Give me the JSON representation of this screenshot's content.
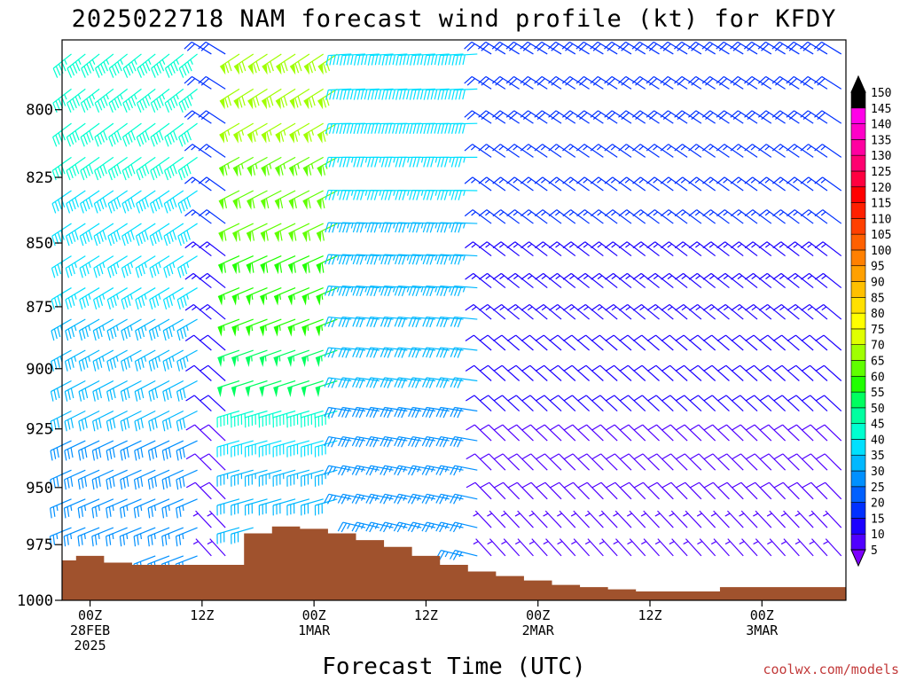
{
  "chart_data": {
    "type": "wind-barb",
    "title": "2025022718 NAM forecast wind profile (kt) for KFDY",
    "xlabel": "Forecast Time (UTC)",
    "ylabel": "",
    "credit": "coolwx.com/models",
    "y_axis": {
      "scale": "pressure (hPa), inverted",
      "range": [
        1000,
        775
      ],
      "ticks": [
        800,
        825,
        850,
        875,
        900,
        925,
        950,
        975,
        1000
      ]
    },
    "x_axis": {
      "range_hours": [
        -3,
        81
      ],
      "ticks": [
        {
          "hour": 0,
          "lines": [
            "00Z",
            "28FEB",
            "2025"
          ]
        },
        {
          "hour": 12,
          "lines": [
            "12Z"
          ]
        },
        {
          "hour": 24,
          "lines": [
            "00Z",
            "1MAR"
          ]
        },
        {
          "hour": 36,
          "lines": [
            "12Z"
          ]
        },
        {
          "hour": 48,
          "lines": [
            "00Z",
            "2MAR"
          ]
        },
        {
          "hour": 60,
          "lines": [
            "12Z"
          ]
        },
        {
          "hour": 72,
          "lines": [
            "00Z",
            "3MAR"
          ]
        }
      ]
    },
    "colorbar": {
      "units": "kt",
      "levels": [
        5,
        10,
        15,
        20,
        25,
        30,
        35,
        40,
        45,
        50,
        55,
        60,
        65,
        70,
        75,
        80,
        85,
        90,
        95,
        100,
        105,
        110,
        115,
        120,
        125,
        130,
        135,
        140,
        145,
        150
      ],
      "colors": [
        "#7e00ff",
        "#5000ff",
        "#1c00ff",
        "#0030ff",
        "#0060ff",
        "#0090ff",
        "#00b8ff",
        "#00e0ff",
        "#00ffd0",
        "#00ffa0",
        "#00ff60",
        "#20ff00",
        "#60ff00",
        "#a0ff00",
        "#e0ff00",
        "#ffff00",
        "#ffe000",
        "#ffc000",
        "#ffa000",
        "#ff8000",
        "#ff6000",
        "#ff4000",
        "#ff2000",
        "#ff0000",
        "#ff0040",
        "#ff0070",
        "#ff00a0",
        "#ff00c8",
        "#ff00e8",
        "#000000"
      ]
    },
    "surface_pressure": {
      "hours": [
        -3,
        0,
        3,
        6,
        9,
        12,
        15,
        18,
        21,
        24,
        27,
        30,
        33,
        36,
        39,
        42,
        45,
        48,
        51,
        54,
        57,
        60,
        63,
        66,
        69,
        72,
        75,
        78,
        81
      ],
      "pressure": [
        982,
        980,
        983,
        984,
        984,
        984,
        984,
        970,
        967,
        968,
        970,
        973,
        976,
        980,
        984,
        987,
        989,
        991,
        993,
        994,
        995,
        996,
        996,
        996,
        994,
        994,
        994,
        994,
        994
      ]
    },
    "wind_field_pattern": [
      {
        "time_hours": [
          -3,
          12
        ],
        "pressure_hPa": [
          775,
          980
        ],
        "from_deg": 240,
        "speed_kt": [
          25,
          45
        ]
      },
      {
        "time_hours": [
          15,
          27
        ],
        "pressure_hPa": [
          775,
          920
        ],
        "from_deg": 245,
        "speed_kt": [
          50,
          70
        ]
      },
      {
        "time_hours": [
          27,
          42
        ],
        "pressure_hPa": [
          775,
          975
        ],
        "from_deg": 275,
        "speed_kt": [
          25,
          40
        ]
      },
      {
        "time_hours": [
          42,
          81
        ],
        "pressure_hPa": [
          775,
          995
        ],
        "from_deg": 310,
        "speed_kt": [
          5,
          20
        ]
      }
    ]
  }
}
